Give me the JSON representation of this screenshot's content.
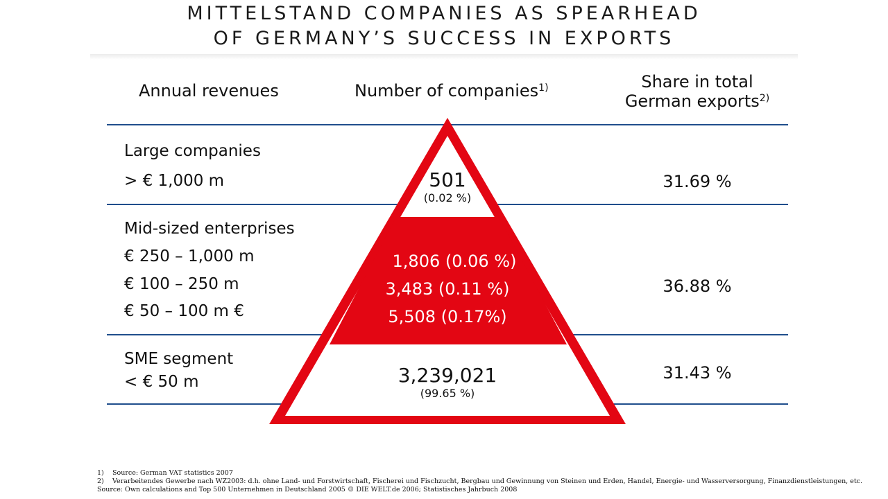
{
  "title": {
    "line1": "MITTELSTAND COMPANIES AS SPEARHEAD",
    "line2": "OF GERMANY’S SUCCESS IN EXPORTS"
  },
  "headers": {
    "revenues": "Annual revenues",
    "companies": "Number of companies",
    "companies_note": "1)",
    "share_line1": "Share in total",
    "share_line2": "German exports",
    "share_note": "2)"
  },
  "rows": {
    "large": {
      "label1": "Large companies",
      "label2": "> € 1,000 m",
      "count": "501",
      "count_pct": "(0.02 %)",
      "share": "31.69 %"
    },
    "mid": {
      "label1": "Mid-sized enterprises",
      "label2": "€ 250 – 1,000 m",
      "label3": "€ 100 – 250 m",
      "label4": "€ 50 – 100 m €",
      "count1": "1,806 (0.06 %)",
      "count2": "3,483 (0.11 %)",
      "count3": "5,508 (0.17%)",
      "share": "36.88 %"
    },
    "sme": {
      "label1": "SME segment",
      "label2": "< € 50 m",
      "count": "3,239,021",
      "count_pct": "(99.65 %)",
      "share": "31.43 %"
    }
  },
  "footnotes": {
    "f1_num": "1)",
    "f1": "Source: German VAT statistics 2007",
    "f2_num": "2)",
    "f2": "Verarbeitendes Gewerbe nach WZ2003: d.h. ohne Land- und Forstwirtschaft, Fischerei und Fischzucht, Bergbau und Gewinnung von Steinen und Erden, Handel, Energie- und Wasserversorgung, Finanzdienstleistungen, etc.",
    "source": "Source: Own calculations and Top 500 Unternehmen in Deutschland 2005 © DIE WELT.de 2006; Statistisches Jahrbuch 2008"
  },
  "colors": {
    "pyramid_red": "#e30613",
    "rule_blue": "#1f4e8c"
  }
}
